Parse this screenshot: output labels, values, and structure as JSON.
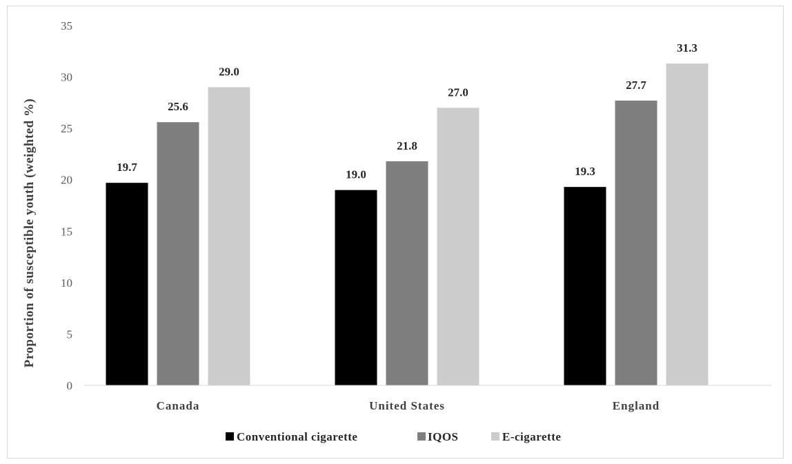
{
  "chart_data": {
    "type": "bar",
    "categories": [
      "Canada",
      "United States",
      "England"
    ],
    "series": [
      {
        "name": "Conventional cigarette",
        "color": "#000000",
        "values": [
          19.7,
          19.0,
          19.3
        ]
      },
      {
        "name": "IQOS",
        "color": "#7f7f7f",
        "values": [
          25.6,
          21.8,
          27.7
        ]
      },
      {
        "name": "E-cigarette",
        "color": "#cccccc",
        "values": [
          29.0,
          27.0,
          31.3
        ]
      }
    ],
    "data_labels": [
      [
        "19.7",
        "19.0",
        "19.3"
      ],
      [
        "25.6",
        "21.8",
        "27.7"
      ],
      [
        "29.0",
        "27.0",
        "31.3"
      ]
    ],
    "yticks": [
      "0",
      "5",
      "10",
      "15",
      "20",
      "25",
      "30",
      "35"
    ],
    "ylim": [
      0,
      35
    ],
    "ylabel": "Proportion of susceptible youth (weighted %)",
    "xlabel": "",
    "legend_position": "bottom",
    "grid": false
  }
}
